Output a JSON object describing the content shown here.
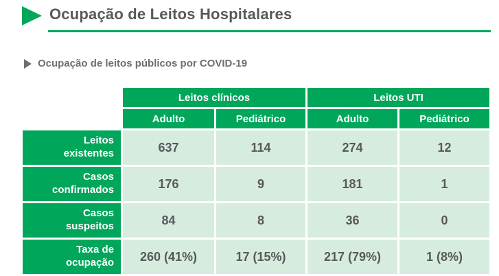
{
  "page": {
    "title": "Ocupação de Leitos Hospitalares",
    "subtitle": "Ocupação de leitos públicos por COVID-19"
  },
  "icons": {
    "title_marker": "play-triangle-right",
    "subtitle_marker": "play-triangle-right-small"
  },
  "colors": {
    "green": "#00A65A",
    "mint": "#D6ECDE",
    "text_dark": "#58595B",
    "text_gray": "#6D6E71"
  },
  "table": {
    "group_headers": [
      {
        "label": "Leitos clínicos"
      },
      {
        "label": "Leitos UTI"
      }
    ],
    "column_headers": [
      "Adulto",
      "Pediátrico",
      "Adulto",
      "Pediátrico"
    ],
    "rows": [
      {
        "label": "Leitos\nexistentes",
        "cells": [
          "637",
          "114",
          "274",
          "12"
        ]
      },
      {
        "label": "Casos\nconfirmados",
        "cells": [
          "176",
          "9",
          "181",
          "1"
        ]
      },
      {
        "label": "Casos\nsuspeitos",
        "cells": [
          "84",
          "8",
          "36",
          "0"
        ]
      },
      {
        "label": "Taxa de\nocupação",
        "cells": [
          "260 (41%)",
          "17 (15%)",
          "217 (79%)",
          "1 (8%)"
        ]
      }
    ]
  }
}
